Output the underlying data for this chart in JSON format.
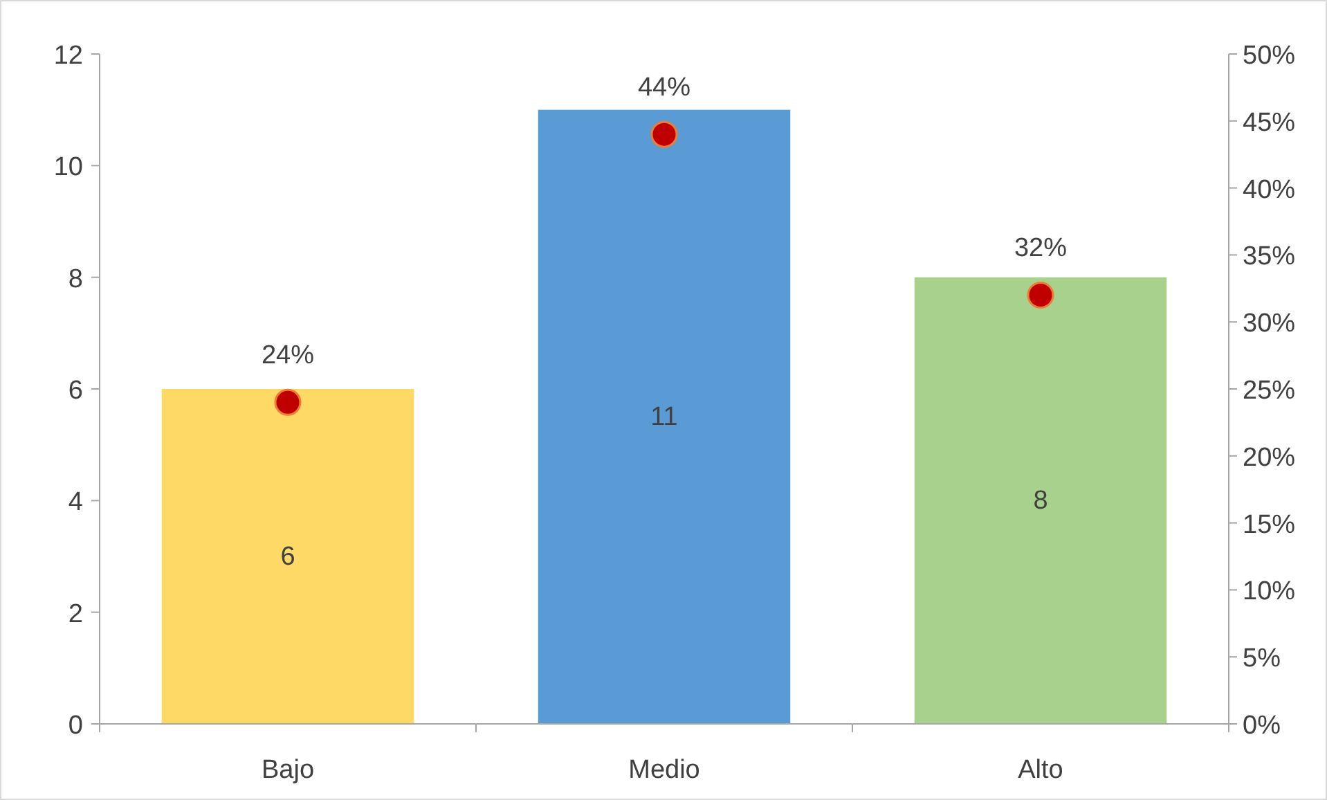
{
  "chart_data": {
    "type": "bar",
    "categories": [
      "Bajo",
      "Medio",
      "Alto"
    ],
    "series": [
      {
        "colors": [
          "#ffd966",
          "#5b9bd5",
          "#a9d18e"
        ],
        "values": [
          6,
          11,
          8
        ],
        "value_labels": [
          "6",
          "11",
          "8"
        ]
      },
      {
        "type": "scatter",
        "axis": "y2",
        "color": "#c00000",
        "values": [
          24,
          44,
          32
        ],
        "value_labels": [
          "24%",
          "44%",
          "32%"
        ]
      }
    ],
    "ylim": [
      0,
      12
    ],
    "yticks": [
      0,
      2,
      4,
      6,
      8,
      10,
      12
    ],
    "y2lim": [
      0,
      50
    ],
    "y2ticks": [
      {
        "value": 0,
        "label": "0%"
      },
      {
        "value": 5,
        "label": "5%"
      },
      {
        "value": 10,
        "label": "10%"
      },
      {
        "value": 15,
        "label": "15%"
      },
      {
        "value": 20,
        "label": "20%"
      },
      {
        "value": 25,
        "label": "25%"
      },
      {
        "value": 30,
        "label": "30%"
      },
      {
        "value": 35,
        "label": "35%"
      },
      {
        "value": 40,
        "label": "40%"
      },
      {
        "value": 45,
        "label": "45%"
      },
      {
        "value": 50,
        "label": "50%"
      }
    ],
    "marker": "circle",
    "grid": false
  }
}
